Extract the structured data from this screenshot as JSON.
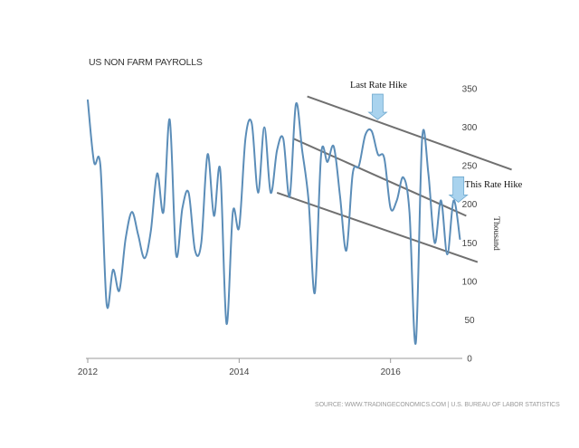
{
  "chart_data": {
    "type": "line",
    "title": "US NON FARM PAYROLLS",
    "ylabel": "Thousand",
    "source": "SOURCE: WWW.TRADINGECONOMICS.COM | U.S. BUREAU OF LABOR STATISTICS",
    "xlim": [
      2012.0,
      2016.9
    ],
    "ylim": [
      0,
      350
    ],
    "y_ticks": [
      0,
      50,
      100,
      150,
      200,
      250,
      300,
      350
    ],
    "x_ticks": [
      {
        "value": 2012,
        "label": "2012"
      },
      {
        "value": 2014,
        "label": "2014"
      },
      {
        "value": 2016,
        "label": "2016"
      }
    ],
    "grid": false,
    "series": [
      {
        "color": "#5b8db8",
        "x": [
          2012.0,
          2012.083,
          2012.167,
          2012.25,
          2012.333,
          2012.417,
          2012.5,
          2012.583,
          2012.667,
          2012.75,
          2012.833,
          2012.917,
          2013.0,
          2013.083,
          2013.167,
          2013.25,
          2013.333,
          2013.417,
          2013.5,
          2013.583,
          2013.667,
          2013.75,
          2013.833,
          2013.917,
          2014.0,
          2014.083,
          2014.167,
          2014.25,
          2014.333,
          2014.417,
          2014.5,
          2014.583,
          2014.667,
          2014.75,
          2014.833,
          2014.917,
          2015.0,
          2015.083,
          2015.167,
          2015.25,
          2015.333,
          2015.417,
          2015.5,
          2015.583,
          2015.667,
          2015.75,
          2015.833,
          2015.917,
          2016.0,
          2016.083,
          2016.167,
          2016.25,
          2016.333,
          2016.417,
          2016.5,
          2016.583,
          2016.667,
          2016.75,
          2016.833,
          2016.917
        ],
        "values": [
          335,
          255,
          250,
          70,
          115,
          88,
          155,
          190,
          160,
          130,
          165,
          240,
          190,
          310,
          135,
          195,
          215,
          140,
          150,
          265,
          185,
          245,
          45,
          190,
          170,
          285,
          305,
          215,
          300,
          215,
          270,
          285,
          210,
          330,
          270,
          205,
          85,
          265,
          255,
          275,
          210,
          140,
          240,
          250,
          290,
          295,
          265,
          260,
          195,
          205,
          235,
          190,
          20,
          285,
          240,
          150,
          205,
          135,
          205,
          155
        ]
      }
    ],
    "trendlines": [
      {
        "from": [
          2014.9,
          340
        ],
        "to": [
          2017.6,
          245
        ]
      },
      {
        "from": [
          2014.72,
          285
        ],
        "to": [
          2017.0,
          185
        ]
      },
      {
        "from": [
          2014.5,
          215
        ],
        "to": [
          2017.15,
          125
        ]
      }
    ],
    "annotations": [
      {
        "text": "Last Rate Hike",
        "x": 2015.83,
        "y": 310
      },
      {
        "text": "This Rate Hike",
        "x": 2016.92,
        "y": 205
      }
    ]
  }
}
